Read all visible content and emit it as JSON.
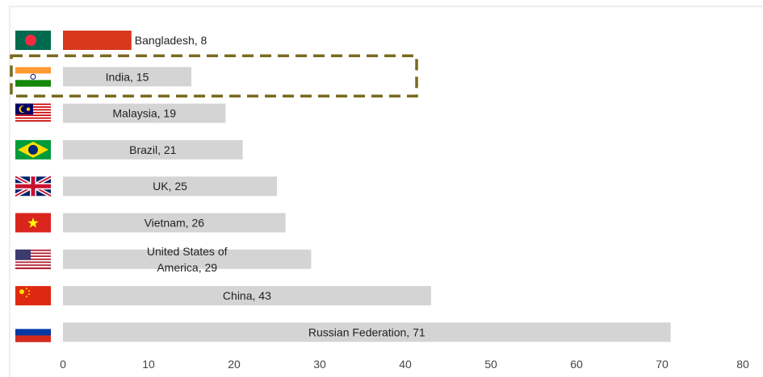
{
  "chart_data": {
    "type": "bar",
    "orientation": "horizontal",
    "categories": [
      "Bangladesh",
      "India",
      "Malaysia",
      "Brazil",
      "UK",
      "Vietnam",
      "United States of America",
      "China",
      "Russian Federation"
    ],
    "values": [
      8,
      15,
      19,
      21,
      25,
      26,
      29,
      43,
      71
    ],
    "bar_labels": [
      [
        "Bangladesh, 8"
      ],
      [
        "India, 15"
      ],
      [
        "Malaysia, 19"
      ],
      [
        "Brazil, 21"
      ],
      [
        "UK, 25"
      ],
      [
        "Vietnam, 26"
      ],
      [
        "United States of",
        "America, 29"
      ],
      [
        "China, 43"
      ],
      [
        "Russian Federation, 71"
      ]
    ],
    "bar_colors": [
      "#d9381e",
      "#d4d4d4",
      "#d4d4d4",
      "#d4d4d4",
      "#d4d4d4",
      "#d4d4d4",
      "#d4d4d4",
      "#d4d4d4",
      "#d4d4d4"
    ],
    "flag_icons": [
      "bangladesh-flag-icon",
      "india-flag-icon",
      "malaysia-flag-icon",
      "brazil-flag-icon",
      "uk-flag-icon",
      "vietnam-flag-icon",
      "usa-flag-icon",
      "china-flag-icon",
      "russia-flag-icon"
    ],
    "xlim": [
      0,
      80
    ],
    "xticks": [
      "0",
      "10",
      "20",
      "30",
      "40",
      "50",
      "60",
      "70",
      "80"
    ],
    "highlight": {
      "category": "India",
      "style": "dashed-box",
      "color": "#7a6a1e"
    },
    "title": "",
    "xlabel": "",
    "ylabel": "",
    "grid": false,
    "legend": "none"
  }
}
